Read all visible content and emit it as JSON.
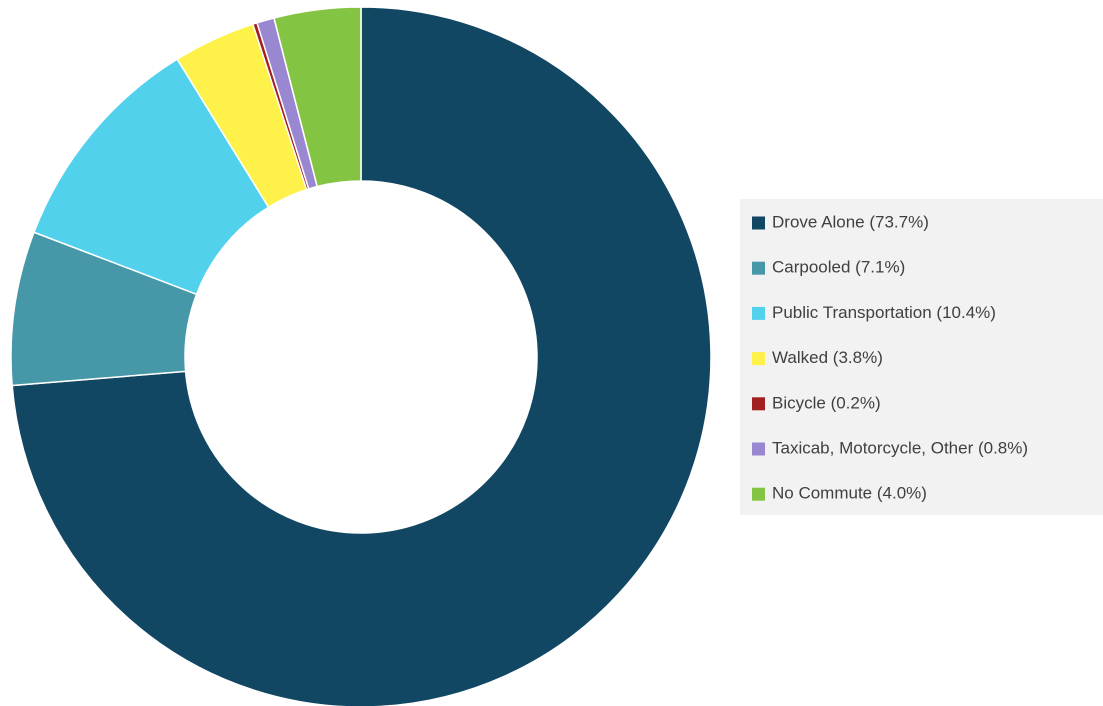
{
  "chart_data": {
    "type": "donut",
    "categories": [
      "Drove Alone (73.7%)",
      "Carpooled (7.1%)",
      "Public Transportation (10.4%)",
      "Walked (3.8%)",
      "Bicycle (0.2%)",
      "Taxicab, Motorcycle, Other (0.8%)",
      "No Commute (4.0%)"
    ],
    "values": [
      73.7,
      7.1,
      10.4,
      3.8,
      0.2,
      0.8,
      4.0
    ],
    "colors": [
      "#124763",
      "#4697a7",
      "#52d1ec",
      "#fef24a",
      "#a32020",
      "#9a87d1",
      "#84c443"
    ],
    "legend": "right"
  }
}
